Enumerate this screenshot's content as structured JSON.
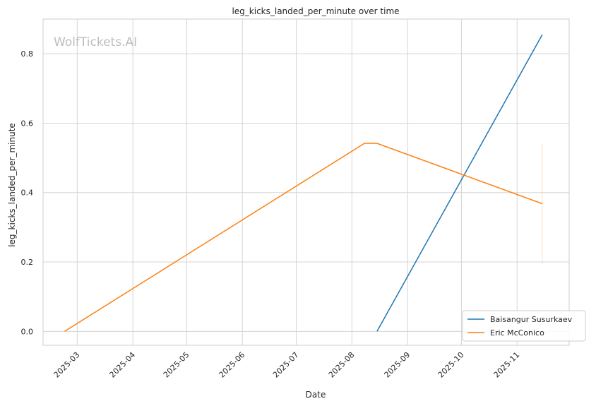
{
  "chart_data": {
    "type": "line",
    "title": "leg_kicks_landed_per_minute over time",
    "xlabel": "Date",
    "ylabel": "leg_kicks_landed_per_minute",
    "watermark": "WolfTickets.AI",
    "x_ticks": [
      "2025-03",
      "2025-04",
      "2025-05",
      "2025-06",
      "2025-07",
      "2025-08",
      "2025-09",
      "2025-10",
      "2025-11"
    ],
    "y_ticks": [
      "0.0",
      "0.2",
      "0.4",
      "0.6",
      "0.8"
    ],
    "ylim": [
      -0.04,
      0.9
    ],
    "xlim": [
      "2025-02-10",
      "2025-11-30"
    ],
    "grid": true,
    "legend_position": "lower-right",
    "series": [
      {
        "name": "Baisangur Susurkaev",
        "color": "#1f77b4",
        "points": [
          {
            "x": "2025-08-15",
            "y": 0.0
          },
          {
            "x": "2025-11-15",
            "y": 0.855
          }
        ]
      },
      {
        "name": "Eric McConico",
        "color": "#ff7f0e",
        "points": [
          {
            "x": "2025-02-22",
            "y": 0.0
          },
          {
            "x": "2025-08-08",
            "y": 0.542
          },
          {
            "x": "2025-08-15",
            "y": 0.542
          },
          {
            "x": "2025-11-15",
            "y": 0.368
          }
        ]
      }
    ],
    "band": {
      "x": "2025-11-15",
      "y_low": 0.195,
      "y_high": 0.54,
      "color": "#ff7f0e"
    }
  }
}
